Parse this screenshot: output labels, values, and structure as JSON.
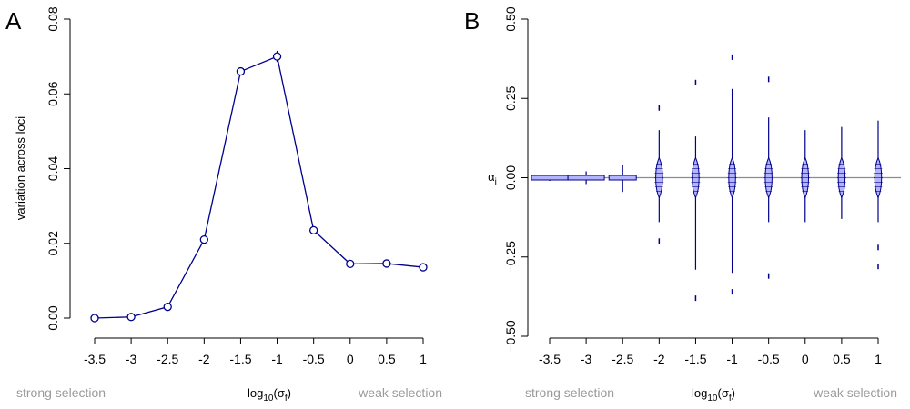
{
  "x_categories": [
    "-3.5",
    "-3",
    "-2.5",
    "-2",
    "-1.5",
    "-1",
    "-0.5",
    "0",
    "0.5",
    "1"
  ],
  "x_label_main": "log",
  "x_label_sub": "10",
  "x_label_tail": "(σ",
  "x_label_sub2": "f",
  "x_label_close": ")",
  "annotation_left": "strong selection",
  "annotation_right": "weak selection",
  "chart_data": [
    {
      "panel": "A",
      "type": "line",
      "series_color": "#00008b",
      "x": [
        -3.5,
        -3,
        -2.5,
        -2,
        -1.5,
        -1,
        -0.5,
        0,
        0.5,
        1
      ],
      "y": [
        0.0,
        0.0003,
        0.003,
        0.021,
        0.066,
        0.07,
        0.0235,
        0.0145,
        0.0146,
        0.0136
      ],
      "y_error": [
        0,
        0,
        0,
        0,
        0.001,
        0.0015,
        0,
        0,
        0,
        0
      ],
      "ylabel": "variation across loci",
      "ylim": [
        0,
        0.08
      ],
      "yticks": [
        "0.00",
        "0.02",
        "0.04",
        "0.06",
        "0.08"
      ],
      "ytick_values": [
        0,
        0.02,
        0.04,
        0.06,
        0.08
      ]
    },
    {
      "panel": "B",
      "type": "violin",
      "series_color": "#00008b",
      "fill_color": "#b3b3ff",
      "reference_line_y": 0,
      "ylabel": "α",
      "ylabel_sub": "i",
      "ylim": [
        -0.5,
        0.5
      ],
      "yticks": [
        "−0.50",
        "−0.25",
        "0.00",
        "0.25",
        "0.50"
      ],
      "ytick_values": [
        -0.5,
        -0.25,
        0,
        0.25,
        0.5
      ],
      "x": [
        -3.5,
        -3,
        -2.5,
        -2,
        -1.5,
        -1,
        -0.5,
        0,
        0.5,
        1
      ],
      "whisker_min": [
        -0.01,
        -0.02,
        -0.045,
        -0.14,
        -0.29,
        -0.3,
        -0.14,
        -0.14,
        -0.13,
        -0.14
      ],
      "whisker_max": [
        0.01,
        0.02,
        0.04,
        0.15,
        0.13,
        0.28,
        0.19,
        0.15,
        0.16,
        0.18
      ],
      "outliers": [
        [],
        [],
        [],
        [
          0.22,
          -0.2
        ],
        [
          0.3,
          -0.38
        ],
        [
          0.38,
          -0.36
        ],
        [
          0.31,
          -0.31
        ],
        [],
        [],
        [
          -0.22,
          -0.28
        ]
      ]
    }
  ]
}
